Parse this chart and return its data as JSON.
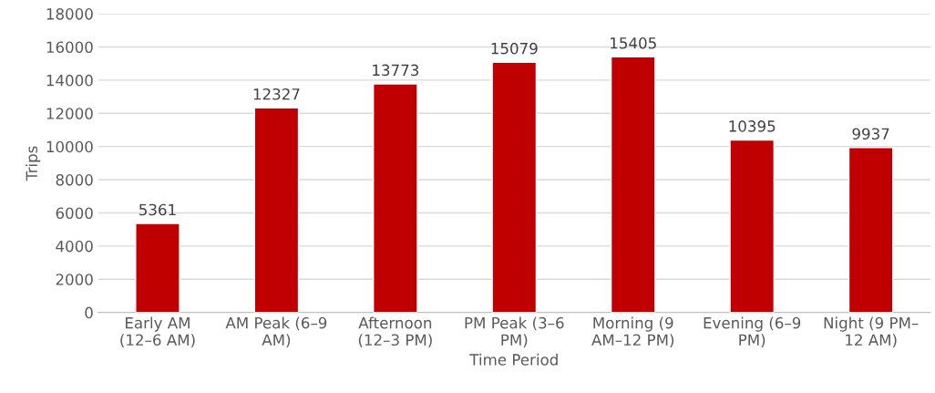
{
  "chart_data": {
    "type": "bar",
    "xlabel": "Time Period",
    "ylabel": "Trips",
    "categories": [
      "Early AM\n(12–6 AM)",
      "AM Peak (6–9\nAM)",
      "Afternoon\n(12–3 PM)",
      "PM Peak (3–6\nPM)",
      "Morning (9\nAM–12 PM)",
      "Evening (6–9\nPM)",
      "Night (9 PM–\n12 AM)"
    ],
    "values": [
      5361,
      12327,
      13773,
      15079,
      15405,
      10395,
      9937
    ],
    "color": "#c00000",
    "ylim": [
      0,
      18000
    ],
    "yticks": [
      0,
      2000,
      4000,
      6000,
      8000,
      10000,
      12000,
      14000,
      16000,
      18000
    ],
    "grid": "y",
    "data_labels": true
  }
}
